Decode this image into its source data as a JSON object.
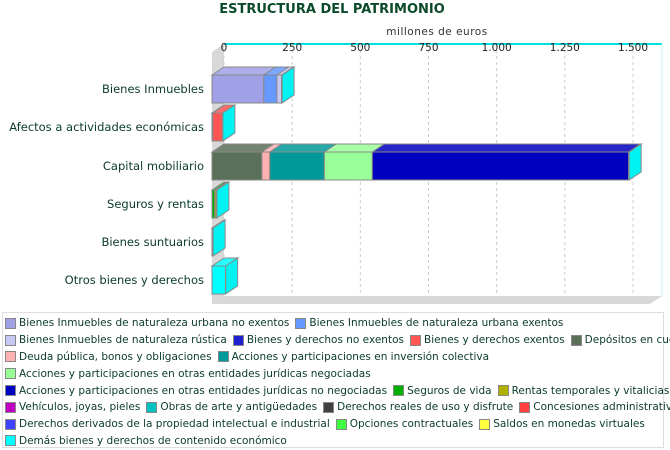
{
  "title": "ESTRUCTURA DEL PATRIMONIO",
  "chart_data": {
    "type": "bar",
    "orientation": "horizontal",
    "stacked": true,
    "style": "3d",
    "title": "ESTRUCTURA DEL PATRIMONIO",
    "xlabel": "millones de euros",
    "xlim": [
      0,
      1600
    ],
    "xticks": [
      "0",
      "250",
      "500",
      "750",
      "1.000",
      "1.250",
      "1.500"
    ],
    "xtick_values": [
      0,
      250,
      500,
      750,
      1000,
      1250,
      1500
    ],
    "grid": true,
    "legend_position": "bottom",
    "categories": [
      "Bienes Inmuebles",
      "Afectos a actividades económicas",
      "Capital mobiliario",
      "Seguros y rentas",
      "Bienes suntuarios",
      "Otros bienes y derechos"
    ],
    "series": [
      {
        "name": "Bienes Inmuebles de naturaleza urbana no exentos",
        "color": "#a0a0e6",
        "values": [
          190,
          0,
          0,
          0,
          0,
          0
        ]
      },
      {
        "name": "Bienes Inmuebles de naturaleza urbana exentos",
        "color": "#6699ff",
        "values": [
          48,
          0,
          0,
          0,
          0,
          0
        ]
      },
      {
        "name": "Bienes Inmuebles de naturaleza rústica",
        "color": "#c8c8f4",
        "values": [
          17,
          0,
          0,
          0,
          0,
          0
        ]
      },
      {
        "name": "Bienes y derechos no exentos",
        "color": "#2020d0",
        "values": [
          0,
          3,
          0,
          0,
          0,
          0
        ]
      },
      {
        "name": "Bienes y derechos exentos",
        "color": "#ff5555",
        "values": [
          0,
          35,
          0,
          0,
          0,
          0
        ]
      },
      {
        "name": "Depósitos en cuenta",
        "color": "#5a7058",
        "values": [
          0,
          0,
          183,
          0,
          0,
          0
        ]
      },
      {
        "name": "Deuda pública, bonos y obligaciones",
        "color": "#ffb0b0",
        "values": [
          0,
          0,
          29,
          0,
          0,
          0
        ]
      },
      {
        "name": "Acciones y participaciones en inversión colectiva",
        "color": "#009999",
        "values": [
          0,
          0,
          200,
          0,
          0,
          0
        ]
      },
      {
        "name": "Acciones y participaciones en otras entidades jurídicas negociadas",
        "color": "#99ff99",
        "values": [
          0,
          0,
          176,
          0,
          0,
          0
        ]
      },
      {
        "name": "Acciones y participaciones en otras entidades jurídicas no negociadas",
        "color": "#0000c0",
        "values": [
          0,
          0,
          940,
          0,
          0,
          0
        ]
      },
      {
        "name": "Seguros de vida",
        "color": "#00b000",
        "values": [
          0,
          0,
          0,
          10,
          0,
          0
        ]
      },
      {
        "name": "Rentas temporales y vitalicias",
        "color": "#b0b000",
        "values": [
          0,
          0,
          0,
          6,
          0,
          0
        ]
      },
      {
        "name": "Vehículos, joyas, pieles",
        "color": "#c000c0",
        "values": [
          0,
          0,
          0,
          0,
          0,
          0
        ]
      },
      {
        "name": "Obras de arte y antigüedades",
        "color": "#00c0c0",
        "values": [
          0,
          0,
          0,
          0,
          0,
          0
        ]
      },
      {
        "name": "Derechos reales de uso y disfrute",
        "color": "#404040",
        "values": [
          0,
          0,
          0,
          0,
          0,
          0
        ]
      },
      {
        "name": "Concesiones administrativas",
        "color": "#ff4040",
        "values": [
          0,
          0,
          0,
          0,
          0,
          0
        ]
      },
      {
        "name": "Derechos derivados de la propiedad intelectual e industrial",
        "color": "#4040ff",
        "values": [
          0,
          0,
          0,
          0,
          0,
          0
        ]
      },
      {
        "name": "Opciones contractuales",
        "color": "#40ff40",
        "values": [
          0,
          0,
          0,
          0,
          0,
          0
        ]
      },
      {
        "name": "Saldos en monedas virtuales",
        "color": "#ffff40",
        "values": [
          0,
          0,
          0,
          0,
          0,
          0
        ]
      },
      {
        "name": "Demás bienes y derechos de contenido económico",
        "color": "#00ffff",
        "values": [
          2,
          2,
          2,
          2,
          4,
          50
        ]
      }
    ]
  },
  "legend_rows": [
    [
      0,
      1
    ],
    [
      2,
      3,
      4,
      5
    ],
    [
      6,
      7
    ],
    [
      8
    ],
    [
      9,
      10,
      11
    ],
    [
      12,
      13,
      14,
      15
    ],
    [
      16,
      17,
      18
    ],
    [
      19
    ]
  ]
}
